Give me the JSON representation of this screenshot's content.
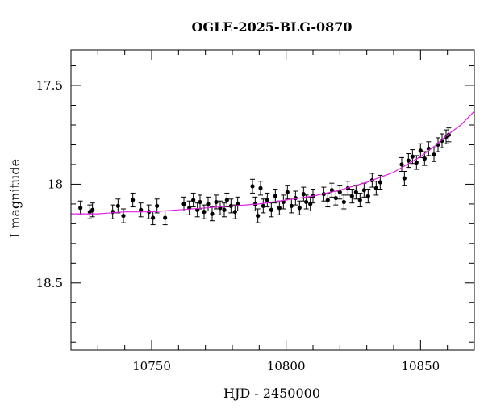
{
  "chart_data": {
    "type": "scatter",
    "title": "OGLE-2025-BLG-0870",
    "xlabel": "HJD - 2450000",
    "ylabel": "I magnitude",
    "xlim": [
      10720,
      10870
    ],
    "ylim": [
      18.84,
      17.32
    ],
    "y_inverted": true,
    "xticks": [
      10750,
      10800,
      10850
    ],
    "yticks": [
      17.5,
      18,
      18.5
    ],
    "xtick_labels": [
      "10750",
      "10800",
      "10850"
    ],
    "ytick_labels": [
      "17.5",
      "18",
      "18.5"
    ],
    "grid": false,
    "colors": {
      "points": "#000000",
      "model": "#e020e0"
    },
    "series": [
      {
        "type": "errorbar-scatter",
        "data": [
          [
            10723.5,
            18.12,
            0.035
          ],
          [
            10727.0,
            18.14,
            0.035
          ],
          [
            10728.0,
            18.13,
            0.035
          ],
          [
            10735.5,
            18.14,
            0.035
          ],
          [
            10737.5,
            18.11,
            0.035
          ],
          [
            10739.5,
            18.16,
            0.035
          ],
          [
            10743.0,
            18.08,
            0.035
          ],
          [
            10746.0,
            18.13,
            0.035
          ],
          [
            10749.0,
            18.14,
            0.035
          ],
          [
            10750.5,
            18.17,
            0.035
          ],
          [
            10752.0,
            18.11,
            0.035
          ],
          [
            10755.0,
            18.17,
            0.035
          ],
          [
            10762.0,
            18.1,
            0.035
          ],
          [
            10764.0,
            18.12,
            0.035
          ],
          [
            10765.5,
            18.08,
            0.035
          ],
          [
            10767.0,
            18.13,
            0.035
          ],
          [
            10768.0,
            18.09,
            0.035
          ],
          [
            10769.5,
            18.14,
            0.035
          ],
          [
            10771.0,
            18.1,
            0.035
          ],
          [
            10772.5,
            18.15,
            0.035
          ],
          [
            10774.0,
            18.09,
            0.035
          ],
          [
            10775.5,
            18.12,
            0.035
          ],
          [
            10777.0,
            18.13,
            0.035
          ],
          [
            10778.0,
            18.08,
            0.035
          ],
          [
            10779.5,
            18.11,
            0.035
          ],
          [
            10781.0,
            18.14,
            0.035
          ],
          [
            10782.0,
            18.1,
            0.035
          ],
          [
            10787.5,
            18.01,
            0.035
          ],
          [
            10788.5,
            18.1,
            0.035
          ],
          [
            10789.5,
            18.16,
            0.035
          ],
          [
            10790.5,
            18.02,
            0.035
          ],
          [
            10791.5,
            18.11,
            0.035
          ],
          [
            10793.0,
            18.08,
            0.035
          ],
          [
            10794.5,
            18.13,
            0.035
          ],
          [
            10796.0,
            18.06,
            0.035
          ],
          [
            10797.5,
            18.12,
            0.035
          ],
          [
            10799.0,
            18.09,
            0.035
          ],
          [
            10800.5,
            18.04,
            0.035
          ],
          [
            10802.0,
            18.11,
            0.035
          ],
          [
            10803.5,
            18.07,
            0.035
          ],
          [
            10805.0,
            18.12,
            0.035
          ],
          [
            10806.5,
            18.05,
            0.035
          ],
          [
            10807.5,
            18.09,
            0.035
          ],
          [
            10809.0,
            18.1,
            0.035
          ],
          [
            10810.0,
            18.06,
            0.035
          ],
          [
            10814.0,
            18.05,
            0.035
          ],
          [
            10815.5,
            18.08,
            0.035
          ],
          [
            10817.0,
            18.03,
            0.035
          ],
          [
            10818.5,
            18.07,
            0.035
          ],
          [
            10820.0,
            18.04,
            0.035
          ],
          [
            10821.5,
            18.09,
            0.035
          ],
          [
            10823.0,
            18.02,
            0.035
          ],
          [
            10824.5,
            18.06,
            0.035
          ],
          [
            10826.0,
            18.04,
            0.035
          ],
          [
            10827.5,
            18.08,
            0.035
          ],
          [
            10829.0,
            18.03,
            0.035
          ],
          [
            10830.5,
            18.06,
            0.035
          ],
          [
            10832.0,
            17.98,
            0.035
          ],
          [
            10833.5,
            18.02,
            0.035
          ],
          [
            10835.0,
            17.99,
            0.035
          ],
          [
            10843.0,
            17.9,
            0.035
          ],
          [
            10844.0,
            17.97,
            0.035
          ],
          [
            10845.5,
            17.88,
            0.035
          ],
          [
            10847.0,
            17.86,
            0.035
          ],
          [
            10848.5,
            17.89,
            0.035
          ],
          [
            10850.0,
            17.83,
            0.035
          ],
          [
            10851.5,
            17.87,
            0.035
          ],
          [
            10853.0,
            17.82,
            0.035
          ],
          [
            10855.0,
            17.85,
            0.035
          ],
          [
            10856.5,
            17.8,
            0.035
          ],
          [
            10858.0,
            17.78,
            0.035
          ],
          [
            10859.5,
            17.76,
            0.035
          ],
          [
            10860.5,
            17.75,
            0.035
          ]
        ]
      },
      {
        "type": "line",
        "x": [
          10720,
          10730,
          10740,
          10750,
          10760,
          10770,
          10780,
          10790,
          10800,
          10810,
          10820,
          10830,
          10840,
          10850,
          10855,
          10860,
          10865,
          10870
        ],
        "y": [
          18.15,
          18.15,
          18.14,
          18.14,
          18.13,
          18.12,
          18.11,
          18.1,
          18.08,
          18.06,
          18.03,
          17.99,
          17.94,
          17.86,
          17.81,
          17.75,
          17.7,
          17.63
        ]
      }
    ]
  }
}
